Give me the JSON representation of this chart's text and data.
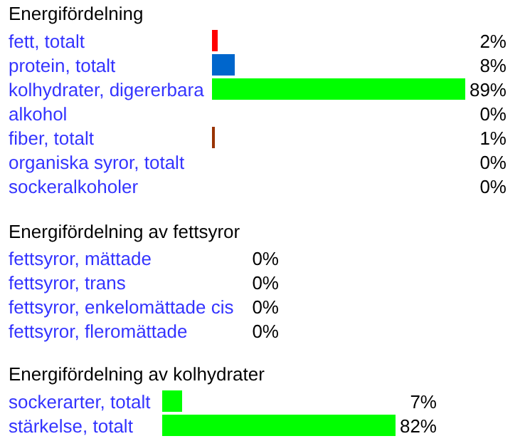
{
  "chart_data": [
    {
      "type": "bar",
      "orientation": "horizontal",
      "title": "Energifördelning",
      "categories": [
        "fett, totalt",
        "protein, totalt",
        "kolhydrater, digererbara",
        "alkohol",
        "fiber, totalt",
        "organiska syror, totalt",
        "sockeralkoholer"
      ],
      "values": [
        2,
        8,
        89,
        0,
        1,
        0,
        0
      ],
      "colors": [
        "#ff0000",
        "#0066cc",
        "#00ff00",
        "#999999",
        "#993300",
        "#999999",
        "#999999"
      ],
      "value_labels": [
        "2%",
        "8%",
        "89%",
        "0%",
        "1%",
        "0%",
        "0%"
      ],
      "tick_labels": "y"
    },
    {
      "type": "other",
      "title": "Energifördelning av fettsyror",
      "categories": [
        "fettsyror, mättade",
        "fettsyror, trans",
        "fettsyror, enkelomättade cis",
        "fettsyror, fleromättade"
      ],
      "values": [
        0,
        0,
        0,
        0
      ],
      "value_labels": [
        "0%",
        "0%",
        "0%",
        "0%"
      ]
    },
    {
      "type": "bar",
      "orientation": "horizontal",
      "title": "Energifördelning av kolhydrater",
      "categories": [
        "sockerarter, totalt",
        "stärkelse, totalt"
      ],
      "values": [
        7,
        82
      ],
      "colors": [
        "#00ff00",
        "#00ff00"
      ],
      "value_labels": [
        "7%",
        "82%"
      ],
      "tick_labels": "y"
    }
  ]
}
